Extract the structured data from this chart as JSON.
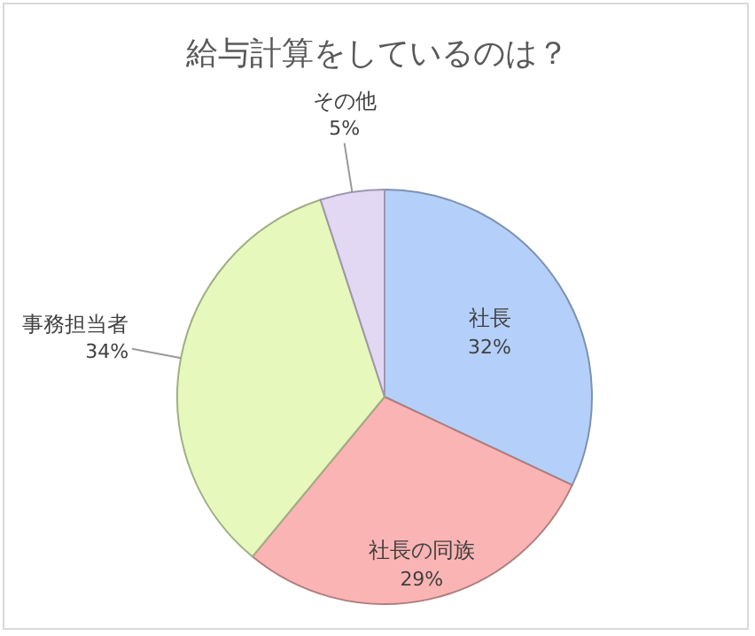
{
  "chart_data": {
    "type": "pie",
    "title": "給与計算をしているのは？",
    "categories": [
      "社長",
      "社長の同族",
      "事務担当者",
      "その他"
    ],
    "values": [
      32,
      29,
      34,
      5
    ],
    "value_labels": [
      "32%",
      "29%",
      "34%",
      "5%"
    ],
    "colors": [
      "#b4d0fa",
      "#fbb4b4",
      "#e6f8bc",
      "#e2d8f4"
    ]
  }
}
